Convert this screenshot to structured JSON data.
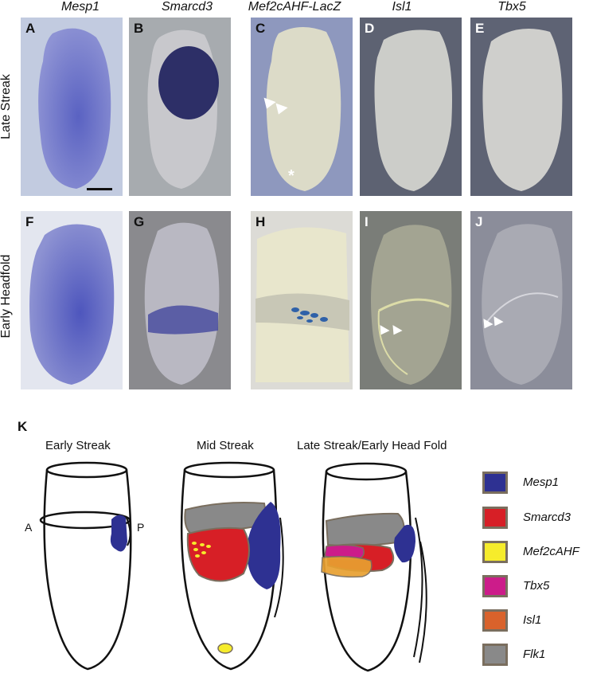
{
  "columns": [
    "Mesp1",
    "Smarcd3",
    "Mef2cAHF-LacZ",
    "Isl1",
    "Tbx5"
  ],
  "rows": [
    "Late Streak",
    "Early Headfold"
  ],
  "panels": [
    "A",
    "B",
    "C",
    "D",
    "E",
    "F",
    "G",
    "H",
    "I",
    "J"
  ],
  "panel_k": {
    "label": "K",
    "stages": [
      "Early Streak",
      "Mid Streak",
      "Late Streak/Early Head Fold"
    ],
    "axis_anterior": "A",
    "axis_posterior": "P"
  },
  "legend": [
    {
      "name": "Mesp1",
      "color": "#2e3192"
    },
    {
      "name": "Smarcd3",
      "color": "#d71f26"
    },
    {
      "name": "Mef2cAHF",
      "color": "#f6ec2b"
    },
    {
      "name": "Tbx5",
      "color": "#cc1c8a"
    },
    {
      "name": "Isl1",
      "color": "#d9622b"
    },
    {
      "name": "Flk1",
      "color": "#898989"
    }
  ]
}
